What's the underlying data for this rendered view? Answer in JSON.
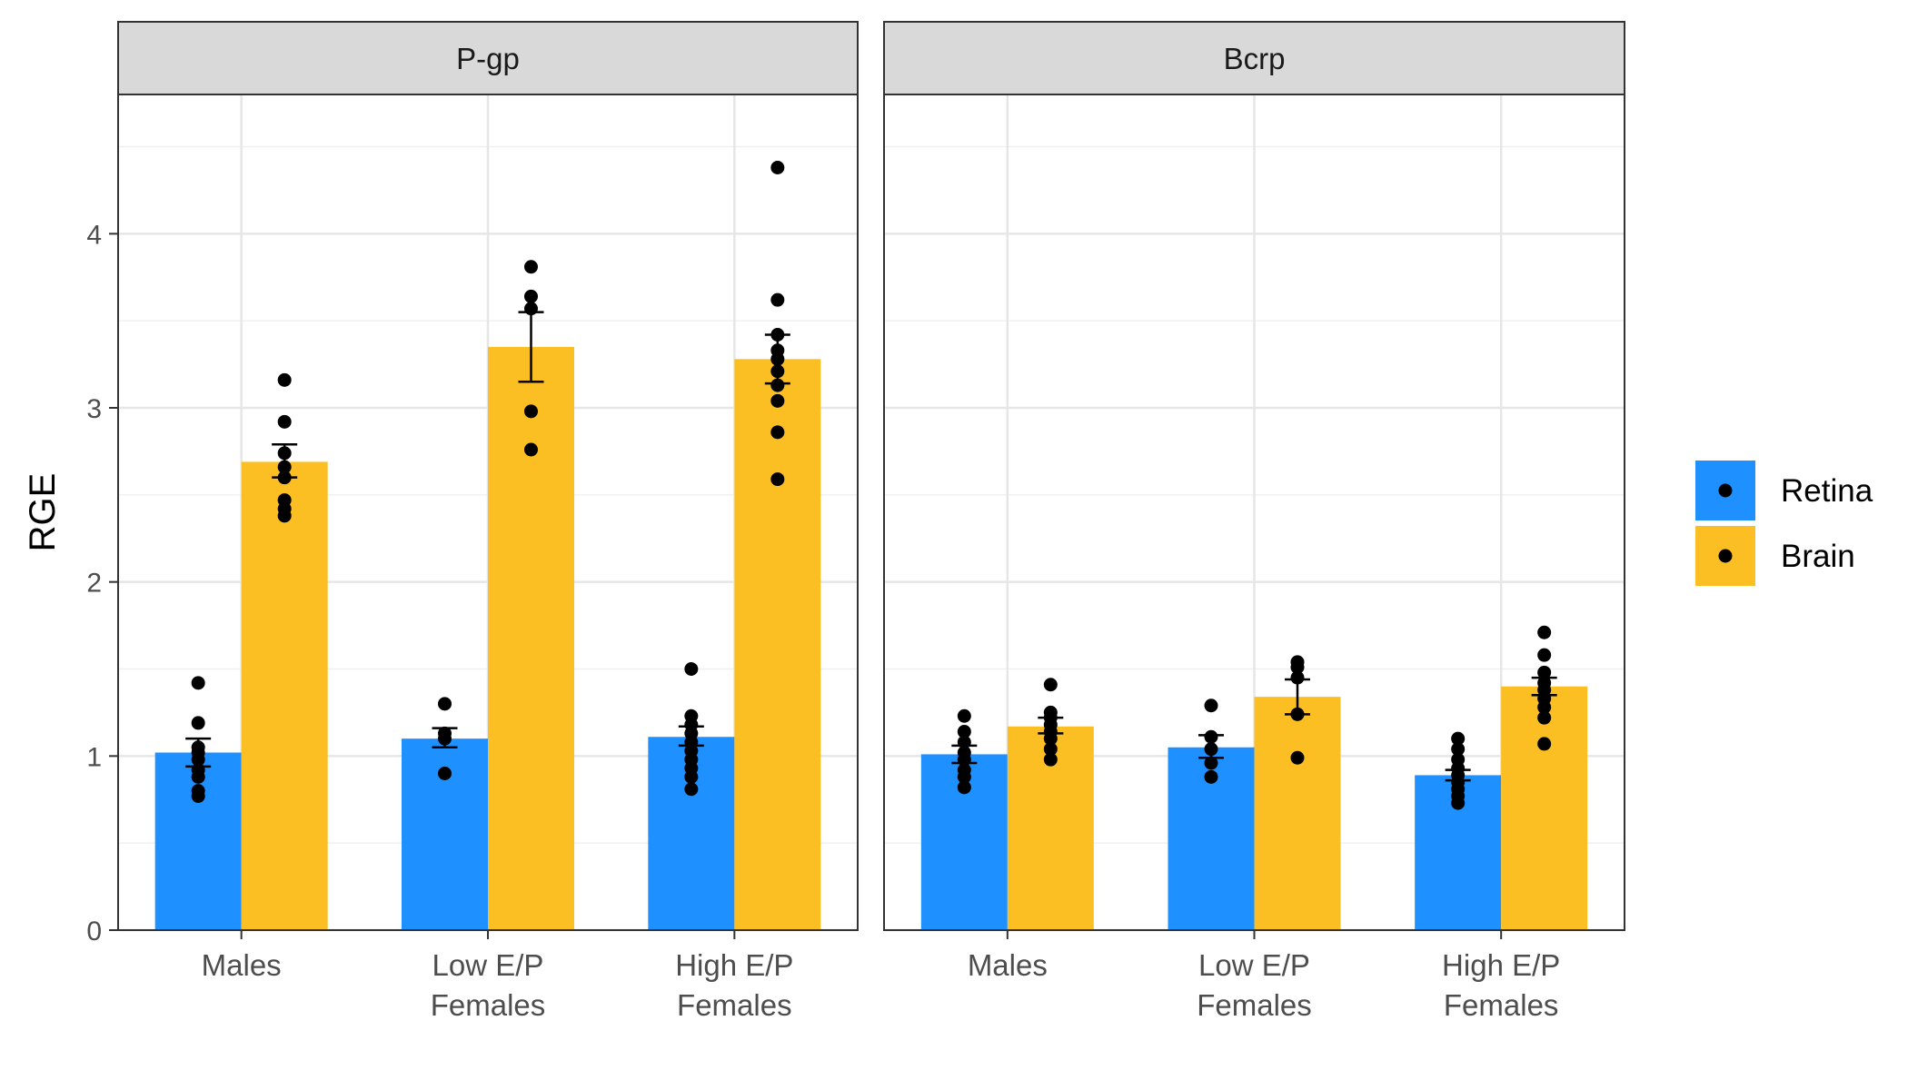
{
  "chart_data": {
    "type": "bar",
    "ylabel": "RGE",
    "xlabel": "",
    "ylim": [
      0,
      4.8
    ],
    "yticks": [
      0,
      1,
      2,
      3,
      4
    ],
    "grid": true,
    "legend_position": "right",
    "categories": [
      [
        "Males"
      ],
      [
        "Low E/P",
        "Females"
      ],
      [
        "High E/P",
        "Females"
      ]
    ],
    "series_meta": [
      {
        "name": "Retina",
        "color": "#1E90FF"
      },
      {
        "name": "Brain",
        "color": "#FBBF24"
      }
    ],
    "panels": [
      {
        "title": "P-gp",
        "series": [
          {
            "name": "Retina",
            "values": [
              1.02,
              1.1,
              1.11
            ],
            "error": [
              [
                0.94,
                1.1
              ],
              [
                1.05,
                1.16
              ],
              [
                1.06,
                1.17
              ]
            ],
            "points": [
              [
                0.77,
                0.8,
                0.88,
                0.92,
                0.98,
                1.02,
                1.05,
                1.19,
                1.42
              ],
              [
                0.9,
                1.1,
                1.13,
                1.3
              ],
              [
                0.81,
                0.88,
                0.93,
                0.98,
                1.03,
                1.08,
                1.13,
                1.18,
                1.23,
                1.5
              ]
            ]
          },
          {
            "name": "Brain",
            "values": [
              2.69,
              3.35,
              3.28
            ],
            "error": [
              [
                2.6,
                2.79
              ],
              [
                3.15,
                3.55
              ],
              [
                3.14,
                3.42
              ]
            ],
            "points": [
              [
                2.38,
                2.42,
                2.47,
                2.6,
                2.66,
                2.74,
                2.92,
                3.16
              ],
              [
                2.76,
                2.98,
                3.57,
                3.64,
                3.81
              ],
              [
                2.59,
                2.86,
                3.04,
                3.13,
                3.21,
                3.28,
                3.33,
                3.42,
                3.62,
                4.38
              ]
            ]
          }
        ]
      },
      {
        "title": "Bcrp",
        "series": [
          {
            "name": "Retina",
            "values": [
              1.01,
              1.05,
              0.89
            ],
            "error": [
              [
                0.96,
                1.06
              ],
              [
                0.99,
                1.12
              ],
              [
                0.86,
                0.92
              ]
            ],
            "points": [
              [
                0.82,
                0.88,
                0.92,
                0.98,
                1.02,
                1.08,
                1.14,
                1.23
              ],
              [
                0.88,
                0.96,
                1.04,
                1.11,
                1.29
              ],
              [
                0.73,
                0.77,
                0.81,
                0.85,
                0.89,
                0.93,
                0.98,
                1.04,
                1.1
              ]
            ]
          },
          {
            "name": "Brain",
            "values": [
              1.17,
              1.34,
              1.4
            ],
            "error": [
              [
                1.13,
                1.22
              ],
              [
                1.24,
                1.44
              ],
              [
                1.35,
                1.45
              ]
            ],
            "points": [
              [
                0.98,
                1.04,
                1.1,
                1.14,
                1.18,
                1.22,
                1.25,
                1.41
              ],
              [
                0.99,
                1.24,
                1.45,
                1.51,
                1.54
              ],
              [
                1.07,
                1.22,
                1.28,
                1.33,
                1.38,
                1.42,
                1.48,
                1.58,
                1.71
              ]
            ]
          }
        ]
      }
    ]
  }
}
